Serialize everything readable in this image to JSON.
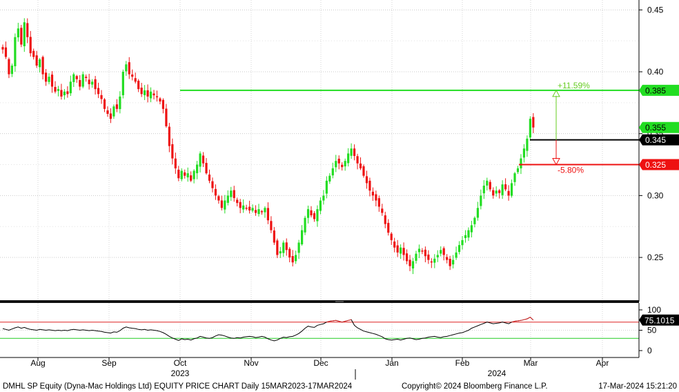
{
  "chart_data": [
    {
      "type": "candlestick",
      "title": "",
      "ylim": [
        0.216,
        0.458
      ],
      "yticks": [
        0.25,
        0.3,
        0.35,
        0.4,
        0.45
      ],
      "ytick_labels": [
        "0.25",
        "0.30",
        "0.35",
        "0.40",
        "0.45"
      ],
      "up_color": "#22dd22",
      "down_color": "#ee1111",
      "grid": true,
      "x_month_labels": [
        "Aug",
        "Sep",
        "Oct",
        "Nov",
        "Dec",
        "Jan",
        "Feb",
        "Mar",
        "Apr"
      ],
      "x_year_labels": [
        "2023",
        "2024"
      ],
      "price_lines": [
        {
          "value": 0.385,
          "label": "0.385",
          "color": "#22dd22"
        },
        {
          "value": 0.345,
          "label": "0.345",
          "color": "#000000"
        },
        {
          "value": 0.325,
          "label": "0.325",
          "color": "#ee1111"
        }
      ],
      "last_price_label": {
        "value": 0.355,
        "label": "0.355",
        "color": "#22dd22"
      },
      "annotations": [
        {
          "text": "+11.59%",
          "from": 0.345,
          "to": 0.385,
          "color": "#66cc22"
        },
        {
          "text": "-5.80%",
          "from": 0.345,
          "to": 0.325,
          "color": "#ee1111"
        }
      ],
      "closes": [
        0.418,
        0.412,
        0.398,
        0.405,
        0.428,
        0.435,
        0.422,
        0.44,
        0.428,
        0.415,
        0.412,
        0.405,
        0.41,
        0.398,
        0.392,
        0.396,
        0.388,
        0.384,
        0.386,
        0.38,
        0.384,
        0.382,
        0.392,
        0.398,
        0.394,
        0.388,
        0.398,
        0.395,
        0.39,
        0.392,
        0.386,
        0.382,
        0.378,
        0.37,
        0.366,
        0.362,
        0.372,
        0.37,
        0.38,
        0.4,
        0.406,
        0.398,
        0.396,
        0.392,
        0.386,
        0.382,
        0.385,
        0.38,
        0.384,
        0.381,
        0.38,
        0.376,
        0.37,
        0.356,
        0.34,
        0.33,
        0.322,
        0.314,
        0.32,
        0.316,
        0.318,
        0.312,
        0.32,
        0.325,
        0.334,
        0.326,
        0.318,
        0.312,
        0.306,
        0.3,
        0.296,
        0.29,
        0.296,
        0.3,
        0.304,
        0.298,
        0.294,
        0.29,
        0.292,
        0.29,
        0.288,
        0.29,
        0.286,
        0.289,
        0.287,
        0.29,
        0.28,
        0.272,
        0.262,
        0.252,
        0.255,
        0.262,
        0.256,
        0.25,
        0.246,
        0.252,
        0.262,
        0.272,
        0.282,
        0.289,
        0.284,
        0.281,
        0.289,
        0.296,
        0.3,
        0.312,
        0.316,
        0.322,
        0.328,
        0.326,
        0.323,
        0.328,
        0.334,
        0.338,
        0.332,
        0.326,
        0.322,
        0.316,
        0.31,
        0.304,
        0.3,
        0.296,
        0.291,
        0.286,
        0.277,
        0.27,
        0.264,
        0.258,
        0.254,
        0.258,
        0.252,
        0.247,
        0.243,
        0.247,
        0.253,
        0.257,
        0.255,
        0.251,
        0.248,
        0.246,
        0.249,
        0.252,
        0.256,
        0.252,
        0.248,
        0.243,
        0.248,
        0.254,
        0.26,
        0.264,
        0.268,
        0.272,
        0.276,
        0.282,
        0.29,
        0.3,
        0.308,
        0.312,
        0.305,
        0.3,
        0.304,
        0.302,
        0.309,
        0.305,
        0.3,
        0.31,
        0.318,
        0.322,
        0.33,
        0.338,
        0.346,
        0.362,
        0.355
      ],
      "rsi": {
        "ylim": [
          0,
          100
        ],
        "yticks": [
          0,
          50,
          100
        ],
        "ytick_labels": [
          "0",
          "50",
          "100"
        ],
        "upper_band": 70,
        "lower_band": 30,
        "last_label": "75.1015",
        "values": [
          54,
          52,
          50,
          53,
          56,
          58,
          55,
          57,
          54,
          52,
          51,
          50,
          52,
          51,
          50,
          51,
          50,
          49,
          50,
          49,
          50,
          49,
          51,
          52,
          51,
          50,
          51,
          50,
          49,
          50,
          49,
          48,
          47,
          45,
          44,
          43,
          46,
          45,
          49,
          55,
          58,
          56,
          55,
          54,
          52,
          51,
          52,
          50,
          51,
          50,
          49,
          47,
          44,
          40,
          35,
          31,
          28,
          25,
          29,
          27,
          28,
          26,
          29,
          31,
          35,
          33,
          31,
          30,
          32,
          36,
          39,
          38,
          36,
          33,
          31,
          30,
          32,
          31,
          33,
          34,
          35,
          34,
          32,
          33,
          35,
          33,
          29,
          26,
          24,
          26,
          30,
          33,
          32,
          34,
          35,
          38,
          42,
          48,
          55,
          60,
          58,
          57,
          62,
          64,
          66,
          70,
          72,
          73,
          74,
          72,
          70,
          72,
          74,
          76,
          62,
          56,
          52,
          48,
          46,
          44,
          42,
          40,
          37,
          34,
          29,
          27,
          26,
          27,
          28,
          26,
          28,
          30,
          31,
          29,
          27,
          28,
          30,
          31,
          33,
          34,
          35,
          33,
          32,
          34,
          35,
          37,
          39,
          41,
          43,
          44,
          47,
          50,
          55,
          58,
          61,
          64,
          67,
          70,
          68,
          66,
          67,
          68,
          70,
          68,
          66,
          70,
          72,
          73,
          74,
          76,
          78,
          82,
          75
        ]
      }
    }
  ],
  "footer": {
    "left": "DMHL SP Equity (Dyna-Mac Holdings Ltd) EQUITY PRICE CHART  Daily 15MAR2023-17MAR2024",
    "center": "Copyright© 2024 Bloomberg Finance L.P.",
    "right": "17-Mar-2024 15:21:20"
  }
}
